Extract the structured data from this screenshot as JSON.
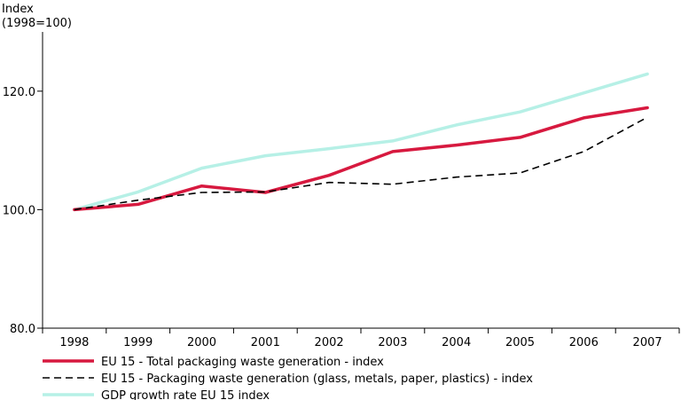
{
  "chart_data": {
    "type": "line",
    "ylabel_line1": "Index",
    "ylabel_line2": "(1998=100)",
    "categories": [
      "1998",
      "1999",
      "2000",
      "2001",
      "2002",
      "2003",
      "2004",
      "2005",
      "2006",
      "2007"
    ],
    "ylim": [
      80,
      130
    ],
    "yticks": [
      80,
      100,
      120
    ],
    "ytick_labels": [
      "80.0",
      "100.0",
      "120.0"
    ],
    "grid": false,
    "legend_position": "bottom-left",
    "series": [
      {
        "name": "EU 15 - Total packaging waste generation - index",
        "color": "#d7193f",
        "style": "solid",
        "values": [
          100.0,
          100.9,
          104.0,
          102.9,
          105.8,
          109.8,
          110.9,
          112.2,
          115.5,
          117.2
        ]
      },
      {
        "name": "EU 15 - Packaging waste generation (glass, metals, paper, plastics) - index",
        "color": "#000000",
        "style": "dashed",
        "values": [
          100.0,
          101.6,
          102.9,
          103.0,
          104.6,
          104.3,
          105.5,
          106.2,
          109.8,
          115.6
        ]
      },
      {
        "name": "GDP growth rate EU 15 index",
        "color": "#b6f0e6",
        "style": "solid",
        "values": [
          100.0,
          103.0,
          107.0,
          109.1,
          110.3,
          111.6,
          114.3,
          116.5,
          119.7,
          122.9
        ]
      }
    ]
  }
}
